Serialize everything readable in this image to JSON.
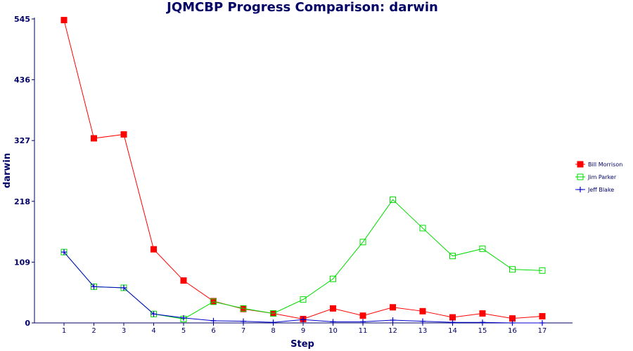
{
  "chart_data": {
    "type": "line",
    "title": "JQMCBP Progress Comparison: darwin",
    "xlabel": "Step",
    "ylabel": "darwin",
    "x": [
      1,
      2,
      3,
      4,
      5,
      6,
      7,
      8,
      9,
      10,
      11,
      12,
      13,
      14,
      15,
      16,
      17
    ],
    "yticks": [
      0,
      109,
      218,
      327,
      436,
      545
    ],
    "ylim": [
      0,
      545
    ],
    "legend_position": "right",
    "grid": false,
    "series": [
      {
        "name": "Bill Morrison",
        "color": "#ff0000",
        "marker": "filled-square",
        "values": [
          543,
          331,
          338,
          132,
          76,
          39,
          25,
          17,
          7,
          26,
          13,
          28,
          21,
          10,
          17,
          8,
          12
        ]
      },
      {
        "name": "Jim Parker",
        "color": "#00dd00",
        "marker": "open-square",
        "values": [
          127,
          65,
          63,
          16,
          7,
          38,
          26,
          17,
          42,
          79,
          145,
          221,
          170,
          120,
          133,
          96,
          94
        ]
      },
      {
        "name": "Jeff Blake",
        "color": "#0000cc",
        "marker": "plus",
        "values": [
          127,
          65,
          63,
          16,
          9,
          4,
          3,
          1,
          6,
          2,
          2,
          5,
          3,
          1,
          1,
          0,
          0
        ]
      }
    ]
  }
}
